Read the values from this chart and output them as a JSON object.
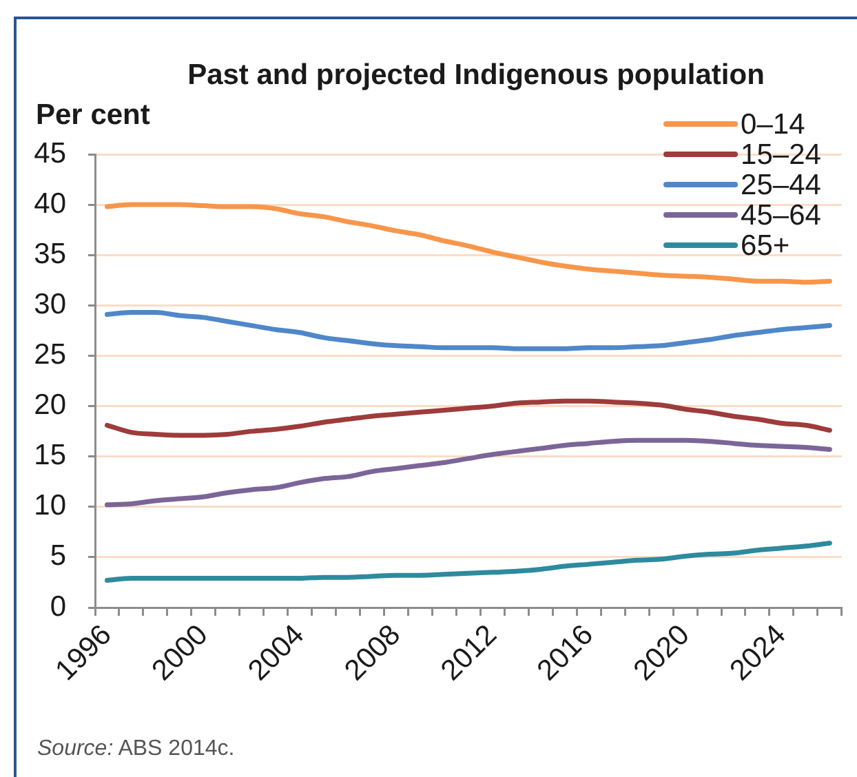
{
  "chart_data": {
    "type": "line",
    "title": "Past and projected Indigenous population",
    "ylabel": "Per cent",
    "categories": [
      "1996",
      null,
      null,
      null,
      "2000",
      null,
      null,
      null,
      "2004",
      null,
      null,
      null,
      "2008",
      null,
      null,
      null,
      "2012",
      null,
      null,
      null,
      "2016",
      null,
      null,
      null,
      "2020",
      null,
      null,
      null,
      "2024",
      null,
      null
    ],
    "series": [
      {
        "name": "0–14",
        "color": "#f7964a",
        "values": [
          39.8,
          40.0,
          40.0,
          40.0,
          39.9,
          39.8,
          39.8,
          39.6,
          39.1,
          38.8,
          38.3,
          37.9,
          37.4,
          37.0,
          36.4,
          35.9,
          35.3,
          34.8,
          34.3,
          33.9,
          33.6,
          33.4,
          33.2,
          33.0,
          32.9,
          32.8,
          32.6,
          32.4,
          32.4,
          32.3,
          32.4
        ]
      },
      {
        "name": "15–24",
        "color": "#9e3b3b",
        "values": [
          18.1,
          17.4,
          17.2,
          17.1,
          17.1,
          17.2,
          17.5,
          17.7,
          18.0,
          18.4,
          18.7,
          19.0,
          19.2,
          19.4,
          19.6,
          19.8,
          20.0,
          20.3,
          20.4,
          20.5,
          20.5,
          20.4,
          20.3,
          20.1,
          19.7,
          19.4,
          19.0,
          18.7,
          18.3,
          18.1,
          17.6
        ]
      },
      {
        "name": "25–44",
        "color": "#4f87c9",
        "values": [
          29.1,
          29.3,
          29.3,
          29.0,
          28.8,
          28.4,
          28.0,
          27.6,
          27.3,
          26.8,
          26.5,
          26.2,
          26.0,
          25.9,
          25.8,
          25.8,
          25.8,
          25.7,
          25.7,
          25.7,
          25.8,
          25.8,
          25.9,
          26.0,
          26.3,
          26.6,
          27.0,
          27.3,
          27.6,
          27.8,
          28.0
        ]
      },
      {
        "name": "45–64",
        "color": "#7b6598",
        "values": [
          10.2,
          10.3,
          10.6,
          10.8,
          11.0,
          11.4,
          11.7,
          11.9,
          12.4,
          12.8,
          13.0,
          13.5,
          13.8,
          14.1,
          14.4,
          14.8,
          15.2,
          15.5,
          15.8,
          16.1,
          16.3,
          16.5,
          16.6,
          16.6,
          16.6,
          16.5,
          16.3,
          16.1,
          16.0,
          15.9,
          15.7
        ]
      },
      {
        "name": "65+",
        "color": "#2e8a9e",
        "values": [
          2.7,
          2.9,
          2.9,
          2.9,
          2.9,
          2.9,
          2.9,
          2.9,
          2.9,
          3.0,
          3.0,
          3.1,
          3.2,
          3.2,
          3.3,
          3.4,
          3.5,
          3.6,
          3.8,
          4.1,
          4.3,
          4.5,
          4.7,
          4.8,
          5.1,
          5.3,
          5.4,
          5.7,
          5.9,
          6.1,
          6.4
        ]
      }
    ],
    "ylim": [
      0,
      45
    ],
    "yticks": [
      0,
      5,
      10,
      15,
      20,
      25,
      30,
      35,
      40,
      45
    ],
    "grid": "y",
    "legend": "top right",
    "marker": "none",
    "line_style": "solid",
    "annotations": [
      "Source: ABS 2014c."
    ]
  }
}
